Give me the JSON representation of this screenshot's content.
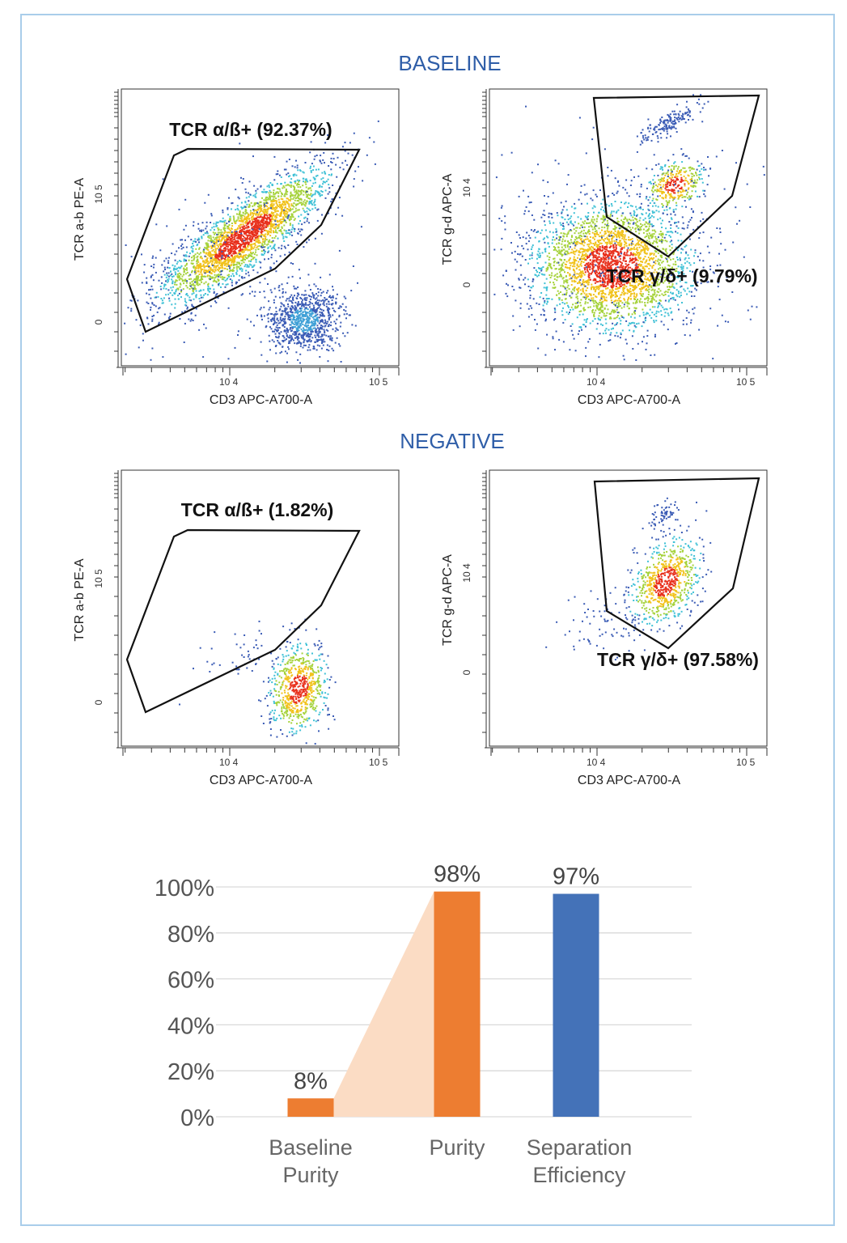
{
  "sections": {
    "baseline": "BASELINE",
    "negative": "NEGATIVE"
  },
  "chart_data": [
    {
      "type": "scatter",
      "section": "BASELINE",
      "xlabel": "CD3 APC-A700-A",
      "ylabel": "TCR a-b PE-A",
      "x_scale": "log",
      "x_ticks": [
        "10 4",
        "10 5"
      ],
      "y_ticks": [
        "0",
        "10 5"
      ],
      "gate": {
        "label": "TCR α/ß+ (92.37%)",
        "percent": 92.37
      }
    },
    {
      "type": "scatter",
      "section": "BASELINE",
      "xlabel": "CD3 APC-A700-A",
      "ylabel": "TCR g-d APC-A",
      "x_scale": "log",
      "x_ticks": [
        "10 4",
        "10 5"
      ],
      "y_ticks": [
        "0",
        "10 4"
      ],
      "gate": {
        "label": "TCR γ/δ+ (9.79%)",
        "percent": 9.79
      }
    },
    {
      "type": "scatter",
      "section": "NEGATIVE",
      "xlabel": "CD3 APC-A700-A",
      "ylabel": "TCR a-b PE-A",
      "x_scale": "log",
      "x_ticks": [
        "10 4",
        "10 5"
      ],
      "y_ticks": [
        "0",
        "10 5"
      ],
      "gate": {
        "label": "TCR α/ß+ (1.82%)",
        "percent": 1.82
      }
    },
    {
      "type": "scatter",
      "section": "NEGATIVE",
      "xlabel": "CD3 APC-A700-A",
      "ylabel": "TCR g-d APC-A",
      "x_scale": "log",
      "x_ticks": [
        "10 4",
        "10 5"
      ],
      "y_ticks": [
        "0",
        "10 4"
      ],
      "gate": {
        "label": "TCR γ/δ+ (97.58%)",
        "percent": 97.58
      }
    },
    {
      "type": "bar",
      "categories": [
        [
          "Baseline",
          "Purity"
        ],
        [
          "Purity"
        ],
        [
          "Separation",
          "Efficiency"
        ]
      ],
      "values": [
        8,
        98,
        97
      ],
      "data_labels": [
        "8%",
        "98%",
        "97%"
      ],
      "colors": [
        "#ed7d31",
        "#ed7d31",
        "#4472b8"
      ],
      "y_ticks": [
        "0%",
        "20%",
        "40%",
        "60%",
        "80%",
        "100%"
      ],
      "ylim": [
        0,
        100
      ],
      "grid": true,
      "connector_color": "#fbdcc4"
    }
  ]
}
